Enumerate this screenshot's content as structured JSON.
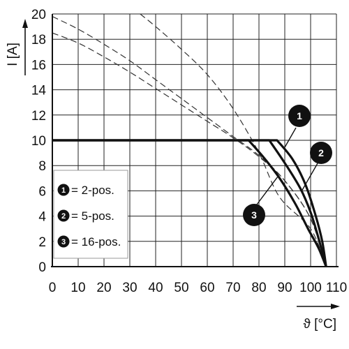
{
  "chart_data": {
    "type": "line",
    "xlabel": "ϑ [°C]",
    "ylabel": "I [A]",
    "xlim": [
      0,
      110
    ],
    "ylim": [
      0,
      20
    ],
    "x_ticks": [
      "0",
      "10",
      "20",
      "30",
      "40",
      "50",
      "60",
      "70",
      "80",
      "90",
      "100",
      "110"
    ],
    "y_ticks": [
      "0",
      "2",
      "4",
      "6",
      "8",
      "10",
      "12",
      "14",
      "16",
      "18",
      "20"
    ],
    "grid": true,
    "series": [
      {
        "badge": "1",
        "legend_label": "= 2-pos.",
        "dashed": [
          [
            34,
            20
          ],
          [
            40,
            19
          ],
          [
            50,
            17.2
          ],
          [
            60,
            15.2
          ],
          [
            70,
            12.5
          ],
          [
            80,
            9
          ],
          [
            88,
            5.5
          ],
          [
            100,
            3
          ],
          [
            106,
            0
          ]
        ],
        "solid": [
          [
            0,
            10
          ],
          [
            87,
            10
          ],
          [
            93,
            8.5
          ],
          [
            98,
            6.5
          ],
          [
            102,
            4
          ],
          [
            104.5,
            2
          ],
          [
            106,
            0
          ]
        ]
      },
      {
        "badge": "2",
        "legend_label": "= 5-pos.",
        "dashed": [
          [
            0,
            19.8
          ],
          [
            10,
            18.8
          ],
          [
            20,
            17.6
          ],
          [
            30,
            16.3
          ],
          [
            40,
            14.8
          ],
          [
            50,
            13.3
          ],
          [
            60,
            11.8
          ],
          [
            70,
            10.3
          ],
          [
            80,
            8.8
          ],
          [
            90,
            6.8
          ],
          [
            100,
            3.8
          ],
          [
            106,
            0
          ]
        ],
        "solid": [
          [
            0,
            10
          ],
          [
            84,
            10
          ],
          [
            90,
            8.2
          ],
          [
            96,
            6.2
          ],
          [
            100,
            4.3
          ],
          [
            103,
            2.3
          ],
          [
            106,
            0
          ]
        ]
      },
      {
        "badge": "3",
        "legend_label": "= 16-pos.",
        "dashed": [
          [
            0,
            18.5
          ],
          [
            10,
            17.7
          ],
          [
            20,
            16.6
          ],
          [
            30,
            15.4
          ],
          [
            40,
            14.1
          ],
          [
            50,
            12.8
          ],
          [
            60,
            11.5
          ],
          [
            70,
            10.2
          ],
          [
            80,
            8.7
          ],
          [
            90,
            6.8
          ],
          [
            100,
            3.8
          ],
          [
            106,
            0
          ]
        ],
        "solid": [
          [
            0,
            10
          ],
          [
            76,
            10
          ],
          [
            82,
            8.6
          ],
          [
            88,
            7
          ],
          [
            94,
            5
          ],
          [
            99,
            3
          ],
          [
            103,
            1.5
          ],
          [
            106,
            0
          ]
        ]
      }
    ],
    "legend_placement": "bottom-left"
  }
}
